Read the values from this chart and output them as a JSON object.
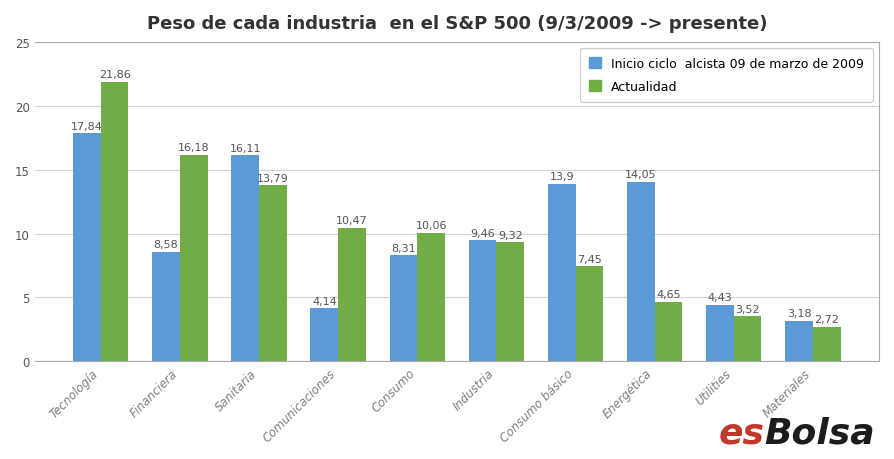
{
  "title": "Peso de cada industria  en el S&P 500 (9/3/2009 -> presente)",
  "categories": [
    "Tecnología",
    "Financiera",
    "Sanitaria",
    "Comunicaciones",
    "Consumo",
    "Industria",
    "Consumo básico",
    "Energética",
    "Utilities",
    "Materiales"
  ],
  "inicio": [
    17.84,
    8.58,
    16.11,
    4.14,
    8.31,
    9.46,
    13.9,
    14.05,
    4.43,
    3.18
  ],
  "actualidad": [
    21.86,
    16.18,
    13.79,
    10.47,
    10.06,
    9.32,
    7.45,
    4.65,
    3.52,
    2.72
  ],
  "inicio_labels": [
    "17,84",
    "8,58",
    "16,11",
    "4,14",
    "8,31",
    "9,46",
    "13,9",
    "14,05",
    "4,43",
    "3,18"
  ],
  "actualidad_labels": [
    "21,86",
    "16,18",
    "13,79",
    "10,47",
    "10,06",
    "9,32",
    "7,45",
    "4,65",
    "3,52",
    "2,72"
  ],
  "color_inicio": "#5B9BD5",
  "color_actualidad": "#70AD47",
  "legend_inicio": "Inicio ciclo  alcista 09 de marzo de 2009",
  "legend_actualidad": "Actualidad",
  "ylim": [
    0,
    25
  ],
  "yticks": [
    0,
    5,
    10,
    15,
    20,
    25
  ],
  "background_color": "#FFFFFF",
  "grid_color": "#D3D3D3",
  "title_fontsize": 13,
  "label_fontsize": 8,
  "tick_fontsize": 8.5,
  "xtick_color": "#7F7F7F",
  "esbolsa_es_color": "#C0392B",
  "esbolsa_bolsa_color": "#1C1C1C",
  "esbolsa_fontsize": 26,
  "border_color": "#AAAAAA"
}
